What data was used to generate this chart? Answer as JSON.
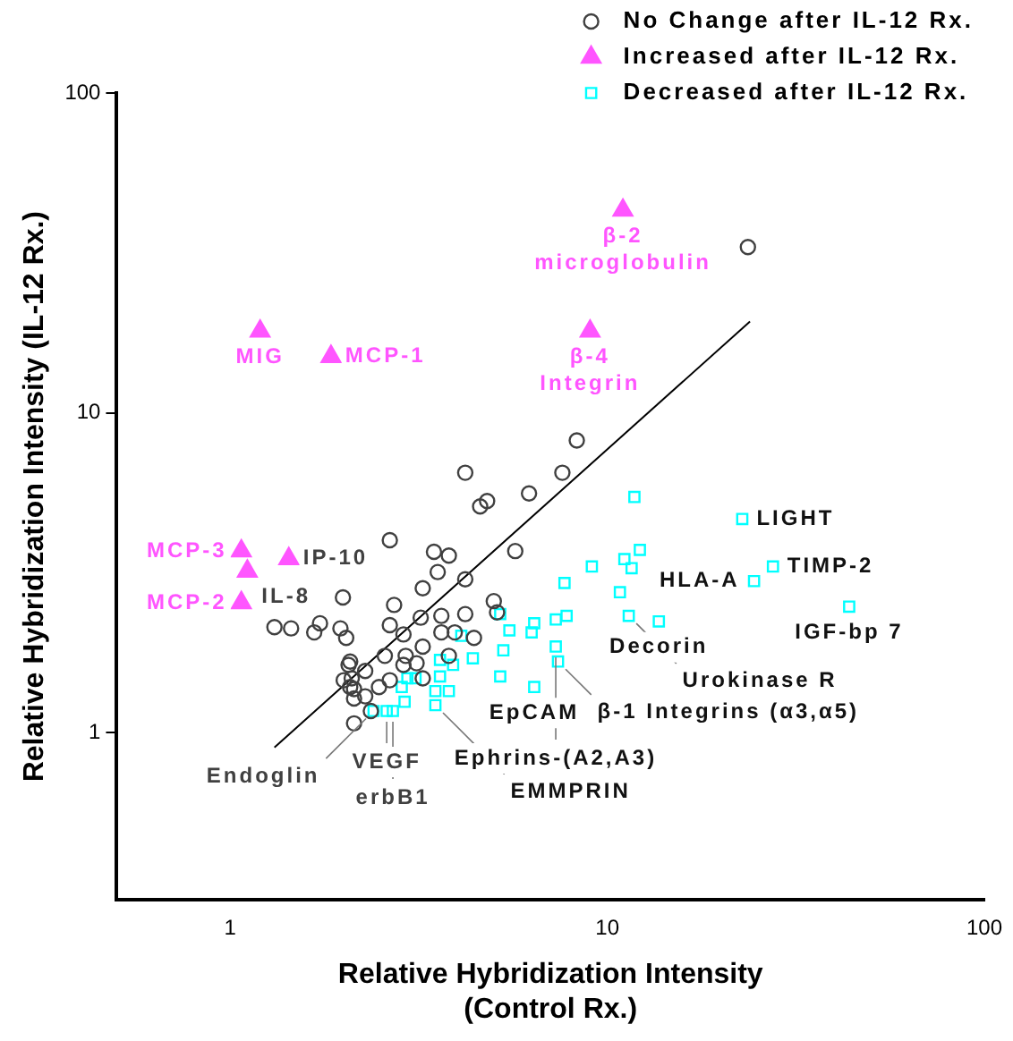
{
  "chart_data": {
    "type": "scatter",
    "xlabel": "Relative Hybridization Intensity\n(Control Rx.)",
    "ylabel": "Relative Hybridization Intensity (IL-12 Rx.)",
    "log": "xy",
    "xlim": [
      0.5,
      100
    ],
    "ylim": [
      0.3,
      100
    ],
    "xticks": [
      1,
      10,
      100
    ],
    "yticks": [
      1,
      10,
      100
    ],
    "grid": false,
    "legend": "top right",
    "series": [
      {
        "name": "No Change after IL-12 Rx.",
        "color": "#404040",
        "marker": "circle",
        "x": [
          23.6,
          8.3,
          7.6,
          6.2,
          4.8,
          4.6,
          4.2,
          5.7,
          2.65,
          3.47,
          3.8,
          3.55,
          4.2,
          3.24,
          1.99,
          2.72,
          3.2,
          3.63,
          4.2,
          5.1,
          5.0,
          1.31,
          1.45,
          1.67,
          1.73,
          1.96,
          2.03,
          2.65,
          2.88,
          3.24,
          3.63,
          3.94,
          4.43,
          2.57,
          2.92,
          2.06,
          2.1,
          2.13,
          2.28,
          2.13,
          2.65,
          2.88,
          3.12,
          3.8,
          3.24,
          2.08,
          2.28,
          2.08,
          2.13,
          2.36,
          2.0,
          2.48
        ],
        "values": [
          33,
          8.2,
          6.5,
          5.6,
          5.3,
          5.1,
          6.5,
          3.7,
          4.0,
          3.68,
          3.58,
          3.18,
          3.02,
          2.83,
          2.65,
          2.51,
          2.29,
          2.32,
          2.35,
          2.38,
          2.58,
          2.14,
          2.12,
          2.06,
          2.2,
          2.12,
          1.98,
          2.17,
          2.03,
          1.86,
          2.06,
          2.06,
          1.98,
          1.74,
          1.74,
          1.63,
          1.48,
          1.37,
          1.3,
          1.28,
          1.46,
          1.63,
          1.65,
          1.74,
          1.48,
          1.67,
          1.56,
          1.39,
          1.07,
          1.17,
          1.46,
          1.39
        ]
      },
      {
        "name": "Increased after IL-12 Rx.",
        "color": "#ff55ff",
        "marker": "triangle",
        "x": [
          11.0,
          1.2,
          1.85,
          9.0,
          1.43,
          1.07,
          1.11,
          1.07
        ],
        "values": [
          43,
          18,
          15,
          18,
          3.5,
          3.7,
          3.2,
          2.55
        ]
      },
      {
        "name": "Decreased after IL-12 Rx.",
        "color": "#00ffff",
        "marker": "square",
        "x": [
          11.8,
          22.8,
          12.2,
          11.1,
          11.6,
          9.1,
          7.7,
          10.8,
          27.5,
          24.5,
          43.8,
          11.4,
          13.7,
          7.8,
          7.3,
          6.4,
          6.3,
          5.5,
          5.2,
          5.3,
          7.3,
          7.4,
          4.4,
          5.2,
          6.4,
          4.1,
          3.6,
          3.9,
          3.6,
          3.5,
          3.5,
          3.8,
          2.9,
          2.6,
          2.95,
          2.4,
          2.7,
          2.85,
          3.1
        ],
        "values": [
          5.46,
          4.66,
          3.73,
          3.49,
          3.27,
          3.31,
          2.94,
          2.75,
          3.31,
          2.98,
          2.48,
          2.32,
          2.23,
          2.32,
          2.26,
          2.2,
          2.06,
          2.09,
          2.35,
          1.81,
          1.86,
          1.67,
          1.71,
          1.5,
          1.39,
          2.01,
          1.69,
          1.63,
          1.5,
          1.35,
          1.22,
          1.35,
          1.25,
          1.17,
          1.48,
          1.17,
          1.17,
          1.39,
          1.48
        ]
      },
      {
        "type": "line",
        "color": "#000000",
        "marker": "none",
        "x": [
          1.31,
          23.9
        ],
        "values": [
          0.9,
          19.3
        ]
      }
    ],
    "annotations": [
      {
        "text": "β-2\nmicroglobulin",
        "x": 11.0,
        "y": 43
      },
      {
        "text": "MIG",
        "x": 1.2,
        "y": 18
      },
      {
        "text": "MCP-1",
        "x": 1.85,
        "y": 15
      },
      {
        "text": "β-4\nIntegrin",
        "x": 9.0,
        "y": 18
      },
      {
        "text": "IP-10",
        "x": 1.43,
        "y": 3.5
      },
      {
        "text": "MCP-3",
        "x": 1.07,
        "y": 3.7
      },
      {
        "text": "IL-8",
        "x": 1.11,
        "y": 3.2
      },
      {
        "text": "MCP-2",
        "x": 1.07,
        "y": 2.55
      },
      {
        "text": "LIGHT",
        "x": 22.8,
        "y": 4.66
      },
      {
        "text": "TIMP-2",
        "x": 27.5,
        "y": 3.31
      },
      {
        "text": "IGF-bp 7",
        "x": 43.8,
        "y": 2.48
      },
      {
        "text": "HLA-A",
        "x": 24.5,
        "y": 2.98
      },
      {
        "text": "Decorin",
        "x": 13.7,
        "y": 2.23
      },
      {
        "text": "Urokinase R",
        "x": 11.4,
        "y": 2.32
      },
      {
        "text": "β-1 Integrins (α3,α5)",
        "x": 7.4,
        "y": 1.67
      },
      {
        "text": "EpCAM",
        "x": 6.4,
        "y": 1.39
      },
      {
        "text": "Ephrins-(A2,A3)",
        "x": 7.3,
        "y": 1.86
      },
      {
        "text": "VEGF",
        "x": 2.6,
        "y": 1.17
      },
      {
        "text": "Endoglin",
        "x": 2.4,
        "y": 1.17
      },
      {
        "text": "erbB1",
        "x": 2.7,
        "y": 1.17
      },
      {
        "text": "EMMPRIN",
        "x": 3.5,
        "y": 1.22
      }
    ]
  }
}
